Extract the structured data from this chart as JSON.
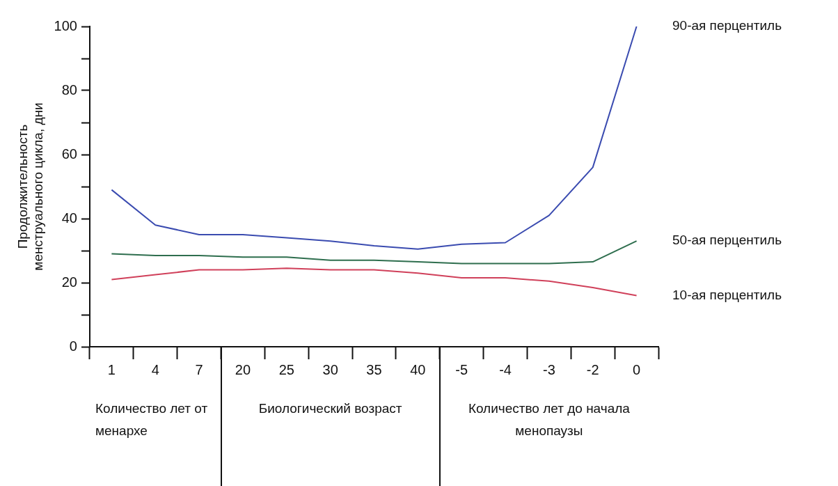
{
  "chart_data": {
    "type": "line",
    "ylabel": "Продолжительность\nменструального цикла, дни",
    "categories": [
      "1",
      "4",
      "7",
      "20",
      "25",
      "30",
      "35",
      "40",
      "-5",
      "-4",
      "-3",
      "-2",
      "0"
    ],
    "series": [
      {
        "name": "90-ая перцентиль",
        "color": "#3a4bb0",
        "values": [
          49,
          38,
          35,
          35,
          34,
          33,
          31.5,
          30.5,
          32,
          32.5,
          41,
          56,
          100
        ]
      },
      {
        "name": "50-ая перцентиль",
        "color": "#2e6e4e",
        "values": [
          29,
          28.5,
          28.5,
          28,
          28,
          27,
          27,
          26.5,
          26,
          26,
          26,
          26.5,
          33
        ]
      },
      {
        "name": "10-ая перцентиль",
        "color": "#d0405a",
        "values": [
          21,
          22.5,
          24,
          24,
          24.5,
          24,
          24,
          23,
          21.5,
          21.5,
          20.5,
          18.5,
          16
        ]
      }
    ],
    "ylim": [
      0,
      100
    ],
    "yticks": [
      0,
      {
        "value": 10,
        "label": null
      },
      20,
      {
        "value": 30,
        "label": null
      },
      40,
      {
        "value": 50,
        "label": null
      },
      60,
      {
        "value": 70,
        "label": null
      },
      80,
      {
        "value": 90,
        "label": null
      },
      100
    ],
    "annotations": [
      "Количество лет от менархе",
      "Биологический возраст",
      "Количество лет до начала менопаузы"
    ],
    "grid": false,
    "legend": false,
    "marker": "none",
    "line_style": "solid"
  }
}
